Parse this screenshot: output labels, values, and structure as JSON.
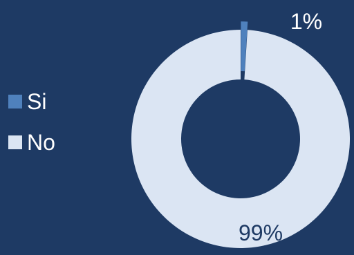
{
  "chart_data": {
    "type": "pie",
    "variant": "donut",
    "categories": [
      "Si",
      "No"
    ],
    "values": [
      1,
      99
    ],
    "unit": "%",
    "data_labels": [
      "1%",
      "99%"
    ],
    "colors": {
      "background": "#1e3a64",
      "Si": "#4f81bd",
      "No": "#dbe5f3",
      "label_on_background": "#ffffff",
      "label_on_slice": "#1e3a64"
    },
    "legend": {
      "placement": "left",
      "entries": [
        "Si",
        "No"
      ]
    },
    "title": "",
    "xlabel": "",
    "ylabel": "",
    "grid": false
  }
}
